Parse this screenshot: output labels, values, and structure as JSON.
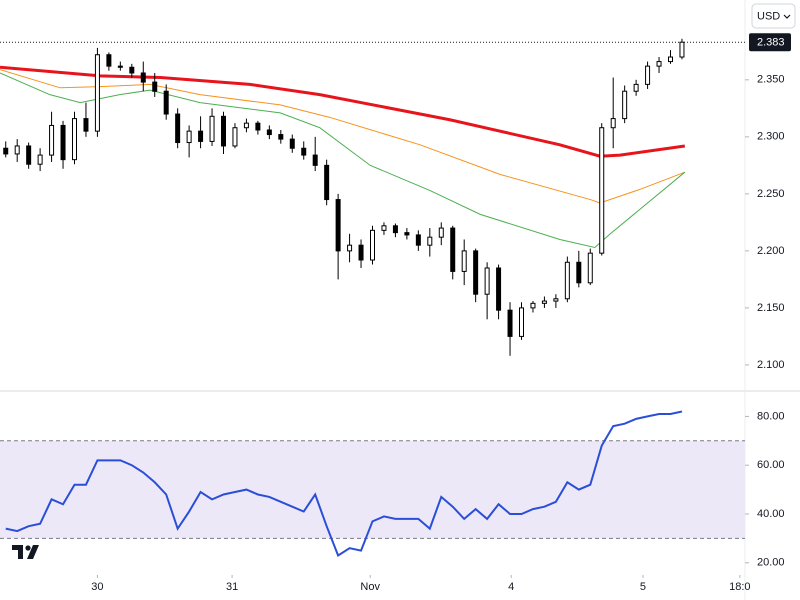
{
  "chart_data": {
    "type": "candlestick",
    "currency": "USD",
    "xlim": [
      0,
      130
    ],
    "xticks": [
      {
        "value": 17,
        "label": "30"
      },
      {
        "value": 40.5,
        "label": "31"
      },
      {
        "value": 64.6,
        "label": "Nov"
      },
      {
        "value": 89.2,
        "label": "4"
      },
      {
        "value": 112.2,
        "label": "5"
      },
      {
        "value": 129.1,
        "label": "18:0"
      }
    ],
    "ylim": [
      2.078,
      2.42
    ],
    "yticks": [
      {
        "value": 2.1,
        "label": "2.100"
      },
      {
        "value": 2.15,
        "label": "2.150"
      },
      {
        "value": 2.2,
        "label": "2.200"
      },
      {
        "value": 2.25,
        "label": "2.250"
      },
      {
        "value": 2.3,
        "label": "2.300"
      },
      {
        "value": 2.35,
        "label": "2.350"
      }
    ],
    "last_price": {
      "value": 2.383,
      "label": "2.383"
    },
    "up_color": "#ffffff",
    "down_color": "#000000",
    "candles": {
      "x": [
        1,
        3,
        5,
        7,
        9,
        11,
        13,
        15,
        17,
        19,
        21,
        23,
        25,
        27,
        29,
        31,
        33,
        35,
        37,
        39,
        41,
        43,
        45,
        47,
        49,
        51,
        53,
        55,
        57,
        59,
        61,
        63,
        65,
        67,
        69,
        71,
        73,
        75,
        77,
        79,
        81,
        83,
        85,
        87,
        89,
        91,
        93,
        95,
        97,
        99,
        101,
        103,
        105,
        107,
        109,
        111,
        113,
        115,
        117,
        119
      ],
      "open": [
        2.29,
        2.285,
        2.292,
        2.276,
        2.284,
        2.31,
        2.28,
        2.316,
        2.305,
        2.372,
        2.362,
        2.361,
        2.356,
        2.348,
        2.34,
        2.32,
        2.295,
        2.305,
        2.296,
        2.318,
        2.292,
        2.308,
        2.312,
        2.306,
        2.302,
        2.298,
        2.29,
        2.284,
        2.275,
        2.245,
        2.2,
        2.205,
        2.192,
        2.218,
        2.222,
        2.216,
        2.214,
        2.205,
        2.212,
        2.22,
        2.182,
        2.2,
        2.162,
        2.185,
        2.148,
        2.125,
        2.15,
        2.154,
        2.156,
        2.158,
        2.19,
        2.172,
        2.198,
        2.308,
        2.316,
        2.34,
        2.346,
        2.362,
        2.366,
        2.37
      ],
      "high": [
        2.296,
        2.298,
        2.295,
        2.29,
        2.322,
        2.314,
        2.322,
        2.33,
        2.378,
        2.374,
        2.366,
        2.364,
        2.366,
        2.356,
        2.346,
        2.325,
        2.31,
        2.318,
        2.325,
        2.322,
        2.312,
        2.316,
        2.314,
        2.31,
        2.306,
        2.302,
        2.296,
        2.3,
        2.28,
        2.25,
        2.215,
        2.21,
        2.222,
        2.225,
        2.224,
        2.22,
        2.218,
        2.22,
        2.225,
        2.222,
        2.21,
        2.202,
        2.19,
        2.188,
        2.155,
        2.155,
        2.156,
        2.16,
        2.162,
        2.195,
        2.2,
        2.202,
        2.312,
        2.352,
        2.345,
        2.35,
        2.366,
        2.37,
        2.376,
        2.386
      ],
      "low": [
        2.282,
        2.278,
        2.272,
        2.27,
        2.278,
        2.272,
        2.276,
        2.3,
        2.3,
        2.358,
        2.358,
        2.352,
        2.34,
        2.335,
        2.315,
        2.29,
        2.282,
        2.29,
        2.292,
        2.285,
        2.29,
        2.304,
        2.302,
        2.298,
        2.294,
        2.286,
        2.28,
        2.27,
        2.24,
        2.175,
        2.19,
        2.185,
        2.188,
        2.214,
        2.212,
        2.21,
        2.2,
        2.195,
        2.205,
        2.175,
        2.17,
        2.155,
        2.14,
        2.14,
        2.108,
        2.122,
        2.146,
        2.15,
        2.15,
        2.155,
        2.168,
        2.17,
        2.196,
        2.29,
        2.312,
        2.336,
        2.342,
        2.356,
        2.364,
        2.368
      ],
      "close": [
        2.285,
        2.292,
        2.276,
        2.284,
        2.31,
        2.28,
        2.316,
        2.305,
        2.372,
        2.362,
        2.361,
        2.356,
        2.348,
        2.34,
        2.32,
        2.295,
        2.305,
        2.296,
        2.318,
        2.292,
        2.308,
        2.312,
        2.306,
        2.302,
        2.298,
        2.29,
        2.284,
        2.275,
        2.245,
        2.2,
        2.205,
        2.192,
        2.218,
        2.222,
        2.216,
        2.214,
        2.205,
        2.212,
        2.22,
        2.182,
        2.2,
        2.162,
        2.185,
        2.148,
        2.125,
        2.15,
        2.154,
        2.156,
        2.158,
        2.19,
        2.172,
        2.198,
        2.308,
        2.316,
        2.34,
        2.346,
        2.362,
        2.366,
        2.37,
        2.383
      ]
    },
    "moving_averages": [
      {
        "color": "#e8141c",
        "width": 3,
        "x": [
          0,
          17.5,
          28,
          43.6,
          55.8,
          78.5,
          97.7,
          104.7,
          108.2,
          119.5
        ],
        "values": [
          2.361,
          2.3535,
          2.352,
          2.346,
          2.337,
          2.315,
          2.293,
          2.283,
          2.284,
          2.292
        ]
      },
      {
        "color": "#f7931e",
        "width": 1,
        "x": [
          0,
          10.5,
          17.5,
          26.2,
          34.9,
          48.9,
          57.6,
          73.3,
          87.3,
          103,
          104.7,
          111.7,
          119.5
        ],
        "values": [
          2.359,
          2.343,
          2.344,
          2.346,
          2.337,
          2.328,
          2.317,
          2.293,
          2.267,
          2.245,
          2.242,
          2.254,
          2.269
        ]
      },
      {
        "color": "#4caf50",
        "width": 1,
        "x": [
          0,
          8.7,
          14,
          20.9,
          26.2,
          34.9,
          48.9,
          55.8,
          64.6,
          75,
          83.8,
          97.7,
          103.8,
          106.5,
          119.5
        ],
        "values": [
          2.356,
          2.337,
          2.33,
          2.337,
          2.341,
          2.33,
          2.321,
          2.308,
          2.275,
          2.253,
          2.232,
          2.21,
          2.203,
          2.215,
          2.269
        ]
      }
    ],
    "rsi": {
      "color": "#2a4fd6",
      "band_color": "#ede8f8",
      "ylim": [
        15,
        90
      ],
      "yticks": [
        {
          "value": 20,
          "label": "20.00"
        },
        {
          "value": 40,
          "label": "40.00"
        },
        {
          "value": 60,
          "label": "60.00"
        },
        {
          "value": 80,
          "label": "80.00"
        }
      ],
      "band": [
        30,
        70
      ],
      "values": [
        34,
        33,
        35,
        36,
        46,
        44,
        52,
        52,
        62,
        62,
        62,
        60,
        57,
        53,
        48,
        34,
        41,
        49,
        46,
        48,
        49,
        50,
        48,
        47,
        45,
        43,
        41,
        48,
        35,
        23,
        26,
        25,
        37,
        39,
        38,
        38,
        38,
        34,
        47,
        43,
        38,
        42,
        38,
        44,
        40,
        40,
        42,
        43,
        45,
        53,
        50,
        52,
        68,
        76,
        77,
        79,
        80,
        81,
        81,
        82
      ]
    }
  }
}
